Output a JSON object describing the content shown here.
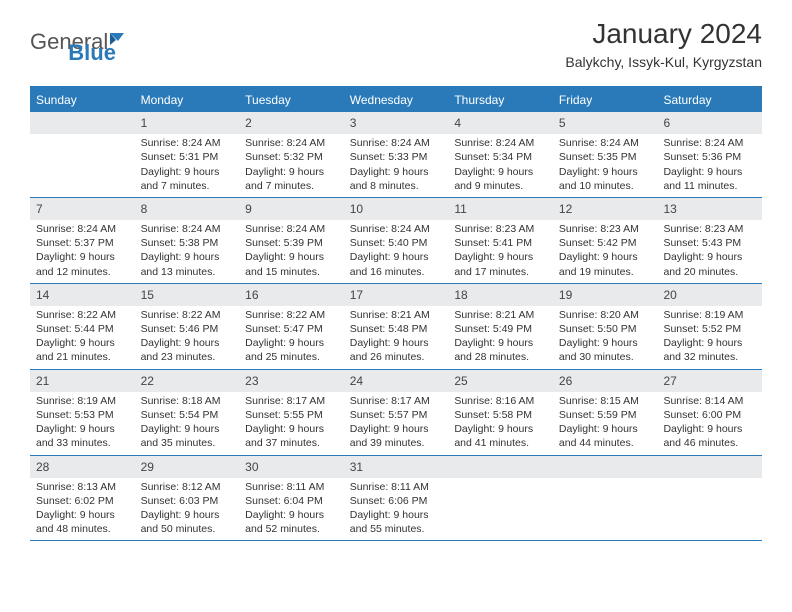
{
  "logo": {
    "text_general": "General",
    "text_blue": "Blue"
  },
  "title": "January 2024",
  "location": "Balykchy, Issyk-Kul, Kyrgyzstan",
  "colors": {
    "header_bg": "#2a7ab9",
    "daynum_bg": "#e9eaeb",
    "text": "#333333",
    "border": "#2a7ab9"
  },
  "day_names": [
    "Sunday",
    "Monday",
    "Tuesday",
    "Wednesday",
    "Thursday",
    "Friday",
    "Saturday"
  ],
  "weeks": [
    [
      {
        "day": "",
        "sunrise": "",
        "sunset": "",
        "daylight": ""
      },
      {
        "day": "1",
        "sunrise": "Sunrise: 8:24 AM",
        "sunset": "Sunset: 5:31 PM",
        "daylight": "Daylight: 9 hours and 7 minutes."
      },
      {
        "day": "2",
        "sunrise": "Sunrise: 8:24 AM",
        "sunset": "Sunset: 5:32 PM",
        "daylight": "Daylight: 9 hours and 7 minutes."
      },
      {
        "day": "3",
        "sunrise": "Sunrise: 8:24 AM",
        "sunset": "Sunset: 5:33 PM",
        "daylight": "Daylight: 9 hours and 8 minutes."
      },
      {
        "day": "4",
        "sunrise": "Sunrise: 8:24 AM",
        "sunset": "Sunset: 5:34 PM",
        "daylight": "Daylight: 9 hours and 9 minutes."
      },
      {
        "day": "5",
        "sunrise": "Sunrise: 8:24 AM",
        "sunset": "Sunset: 5:35 PM",
        "daylight": "Daylight: 9 hours and 10 minutes."
      },
      {
        "day": "6",
        "sunrise": "Sunrise: 8:24 AM",
        "sunset": "Sunset: 5:36 PM",
        "daylight": "Daylight: 9 hours and 11 minutes."
      }
    ],
    [
      {
        "day": "7",
        "sunrise": "Sunrise: 8:24 AM",
        "sunset": "Sunset: 5:37 PM",
        "daylight": "Daylight: 9 hours and 12 minutes."
      },
      {
        "day": "8",
        "sunrise": "Sunrise: 8:24 AM",
        "sunset": "Sunset: 5:38 PM",
        "daylight": "Daylight: 9 hours and 13 minutes."
      },
      {
        "day": "9",
        "sunrise": "Sunrise: 8:24 AM",
        "sunset": "Sunset: 5:39 PM",
        "daylight": "Daylight: 9 hours and 15 minutes."
      },
      {
        "day": "10",
        "sunrise": "Sunrise: 8:24 AM",
        "sunset": "Sunset: 5:40 PM",
        "daylight": "Daylight: 9 hours and 16 minutes."
      },
      {
        "day": "11",
        "sunrise": "Sunrise: 8:23 AM",
        "sunset": "Sunset: 5:41 PM",
        "daylight": "Daylight: 9 hours and 17 minutes."
      },
      {
        "day": "12",
        "sunrise": "Sunrise: 8:23 AM",
        "sunset": "Sunset: 5:42 PM",
        "daylight": "Daylight: 9 hours and 19 minutes."
      },
      {
        "day": "13",
        "sunrise": "Sunrise: 8:23 AM",
        "sunset": "Sunset: 5:43 PM",
        "daylight": "Daylight: 9 hours and 20 minutes."
      }
    ],
    [
      {
        "day": "14",
        "sunrise": "Sunrise: 8:22 AM",
        "sunset": "Sunset: 5:44 PM",
        "daylight": "Daylight: 9 hours and 21 minutes."
      },
      {
        "day": "15",
        "sunrise": "Sunrise: 8:22 AM",
        "sunset": "Sunset: 5:46 PM",
        "daylight": "Daylight: 9 hours and 23 minutes."
      },
      {
        "day": "16",
        "sunrise": "Sunrise: 8:22 AM",
        "sunset": "Sunset: 5:47 PM",
        "daylight": "Daylight: 9 hours and 25 minutes."
      },
      {
        "day": "17",
        "sunrise": "Sunrise: 8:21 AM",
        "sunset": "Sunset: 5:48 PM",
        "daylight": "Daylight: 9 hours and 26 minutes."
      },
      {
        "day": "18",
        "sunrise": "Sunrise: 8:21 AM",
        "sunset": "Sunset: 5:49 PM",
        "daylight": "Daylight: 9 hours and 28 minutes."
      },
      {
        "day": "19",
        "sunrise": "Sunrise: 8:20 AM",
        "sunset": "Sunset: 5:50 PM",
        "daylight": "Daylight: 9 hours and 30 minutes."
      },
      {
        "day": "20",
        "sunrise": "Sunrise: 8:19 AM",
        "sunset": "Sunset: 5:52 PM",
        "daylight": "Daylight: 9 hours and 32 minutes."
      }
    ],
    [
      {
        "day": "21",
        "sunrise": "Sunrise: 8:19 AM",
        "sunset": "Sunset: 5:53 PM",
        "daylight": "Daylight: 9 hours and 33 minutes."
      },
      {
        "day": "22",
        "sunrise": "Sunrise: 8:18 AM",
        "sunset": "Sunset: 5:54 PM",
        "daylight": "Daylight: 9 hours and 35 minutes."
      },
      {
        "day": "23",
        "sunrise": "Sunrise: 8:17 AM",
        "sunset": "Sunset: 5:55 PM",
        "daylight": "Daylight: 9 hours and 37 minutes."
      },
      {
        "day": "24",
        "sunrise": "Sunrise: 8:17 AM",
        "sunset": "Sunset: 5:57 PM",
        "daylight": "Daylight: 9 hours and 39 minutes."
      },
      {
        "day": "25",
        "sunrise": "Sunrise: 8:16 AM",
        "sunset": "Sunset: 5:58 PM",
        "daylight": "Daylight: 9 hours and 41 minutes."
      },
      {
        "day": "26",
        "sunrise": "Sunrise: 8:15 AM",
        "sunset": "Sunset: 5:59 PM",
        "daylight": "Daylight: 9 hours and 44 minutes."
      },
      {
        "day": "27",
        "sunrise": "Sunrise: 8:14 AM",
        "sunset": "Sunset: 6:00 PM",
        "daylight": "Daylight: 9 hours and 46 minutes."
      }
    ],
    [
      {
        "day": "28",
        "sunrise": "Sunrise: 8:13 AM",
        "sunset": "Sunset: 6:02 PM",
        "daylight": "Daylight: 9 hours and 48 minutes."
      },
      {
        "day": "29",
        "sunrise": "Sunrise: 8:12 AM",
        "sunset": "Sunset: 6:03 PM",
        "daylight": "Daylight: 9 hours and 50 minutes."
      },
      {
        "day": "30",
        "sunrise": "Sunrise: 8:11 AM",
        "sunset": "Sunset: 6:04 PM",
        "daylight": "Daylight: 9 hours and 52 minutes."
      },
      {
        "day": "31",
        "sunrise": "Sunrise: 8:11 AM",
        "sunset": "Sunset: 6:06 PM",
        "daylight": "Daylight: 9 hours and 55 minutes."
      },
      {
        "day": "",
        "sunrise": "",
        "sunset": "",
        "daylight": ""
      },
      {
        "day": "",
        "sunrise": "",
        "sunset": "",
        "daylight": ""
      },
      {
        "day": "",
        "sunrise": "",
        "sunset": "",
        "daylight": ""
      }
    ]
  ]
}
